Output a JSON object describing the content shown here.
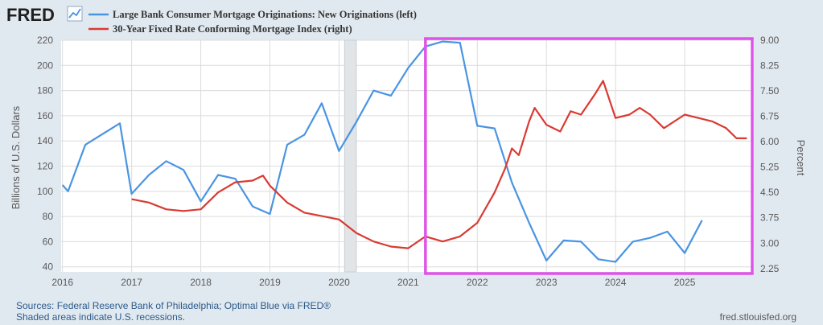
{
  "header": {
    "logo_text": "FRED",
    "logo_icon": "line-chart-icon"
  },
  "footer": {
    "sources": "Sources: Federal Reserve Bank of Philadelphia; Optimal Blue via FRED®",
    "recession_note": "Shaded areas indicate U.S. recessions.",
    "site": "fred.stlouisfed.org"
  },
  "colors": {
    "background": "#e1e9f0",
    "plot_background": "#ffffff",
    "series_left": "#4a94e3",
    "series_right": "#d93a32",
    "recession": "#e1e5e8",
    "highlight": "#e052e8"
  },
  "chart_data": {
    "type": "line",
    "title": "",
    "legend_position": "top-left",
    "xlabel": "",
    "x_ticks": [
      "2016",
      "2017",
      "2018",
      "2019",
      "2020",
      "2021",
      "2022",
      "2023",
      "2024",
      "2025"
    ],
    "x_range": [
      2015.98,
      2026.0
    ],
    "ylabel_left": "Billions of U.S. Dollars",
    "ylabel_right": "Percent",
    "ylim_left": [
      36,
      220
    ],
    "yticks_left": [
      40,
      60,
      80,
      100,
      120,
      140,
      160,
      180,
      200,
      220
    ],
    "ylim_right": [
      2.15,
      9.0
    ],
    "yticks_right": [
      "2.25",
      "3.00",
      "3.75",
      "4.50",
      "5.25",
      "6.00",
      "6.75",
      "7.50",
      "8.25",
      "9.00"
    ],
    "grid": true,
    "recessions": [
      {
        "start": 2020.08,
        "end": 2020.25
      }
    ],
    "highlight_box": {
      "x_start": 2021.25,
      "x_end": 2026.0,
      "label": ""
    },
    "series": [
      {
        "name": "Large Bank Consumer Mortgage Originations: New Originations (left)",
        "axis": "left",
        "x": [
          2016.0,
          2016.08,
          2016.33,
          2016.83,
          2017.0,
          2017.25,
          2017.5,
          2017.75,
          2018.0,
          2018.25,
          2018.5,
          2018.75,
          2019.0,
          2019.25,
          2019.5,
          2019.75,
          2020.0,
          2020.25,
          2020.5,
          2020.75,
          2021.0,
          2021.25,
          2021.5,
          2021.75,
          2022.0,
          2022.25,
          2022.5,
          2022.75,
          2023.0,
          2023.25,
          2023.5,
          2023.75,
          2024.0,
          2024.25,
          2024.5,
          2024.75,
          2025.0,
          2025.25
        ],
        "values": [
          105,
          100,
          137,
          154,
          98,
          113,
          124,
          117,
          92,
          113,
          110,
          88,
          82,
          137,
          145,
          170,
          132,
          155,
          180,
          176,
          198,
          215,
          219,
          218,
          152,
          150,
          107,
          75,
          45,
          61,
          60,
          46,
          44,
          60,
          63,
          68,
          51,
          77
        ]
      },
      {
        "name": "30-Year Fixed Rate Conforming Mortgage Index (right)",
        "axis": "right",
        "x": [
          2017.0,
          2017.25,
          2017.5,
          2017.75,
          2018.0,
          2018.25,
          2018.5,
          2018.75,
          2018.9,
          2019.0,
          2019.25,
          2019.5,
          2019.75,
          2020.0,
          2020.25,
          2020.5,
          2020.75,
          2021.0,
          2021.25,
          2021.5,
          2021.75,
          2022.0,
          2022.25,
          2022.4,
          2022.5,
          2022.6,
          2022.75,
          2022.83,
          2023.0,
          2023.2,
          2023.35,
          2023.5,
          2023.7,
          2023.82,
          2024.0,
          2024.2,
          2024.35,
          2024.5,
          2024.7,
          2025.0,
          2025.2,
          2025.4,
          2025.6,
          2025.75,
          2025.9
        ],
        "values": [
          4.3,
          4.2,
          4.0,
          3.95,
          4.0,
          4.5,
          4.8,
          4.85,
          5.0,
          4.7,
          4.2,
          3.9,
          3.8,
          3.7,
          3.3,
          3.05,
          2.9,
          2.85,
          3.2,
          3.05,
          3.2,
          3.6,
          4.5,
          5.2,
          5.8,
          5.6,
          6.6,
          7.0,
          6.5,
          6.3,
          6.9,
          6.8,
          7.4,
          7.8,
          6.7,
          6.8,
          7.0,
          6.8,
          6.4,
          6.8,
          6.7,
          6.6,
          6.4,
          6.1,
          6.1
        ]
      }
    ]
  }
}
